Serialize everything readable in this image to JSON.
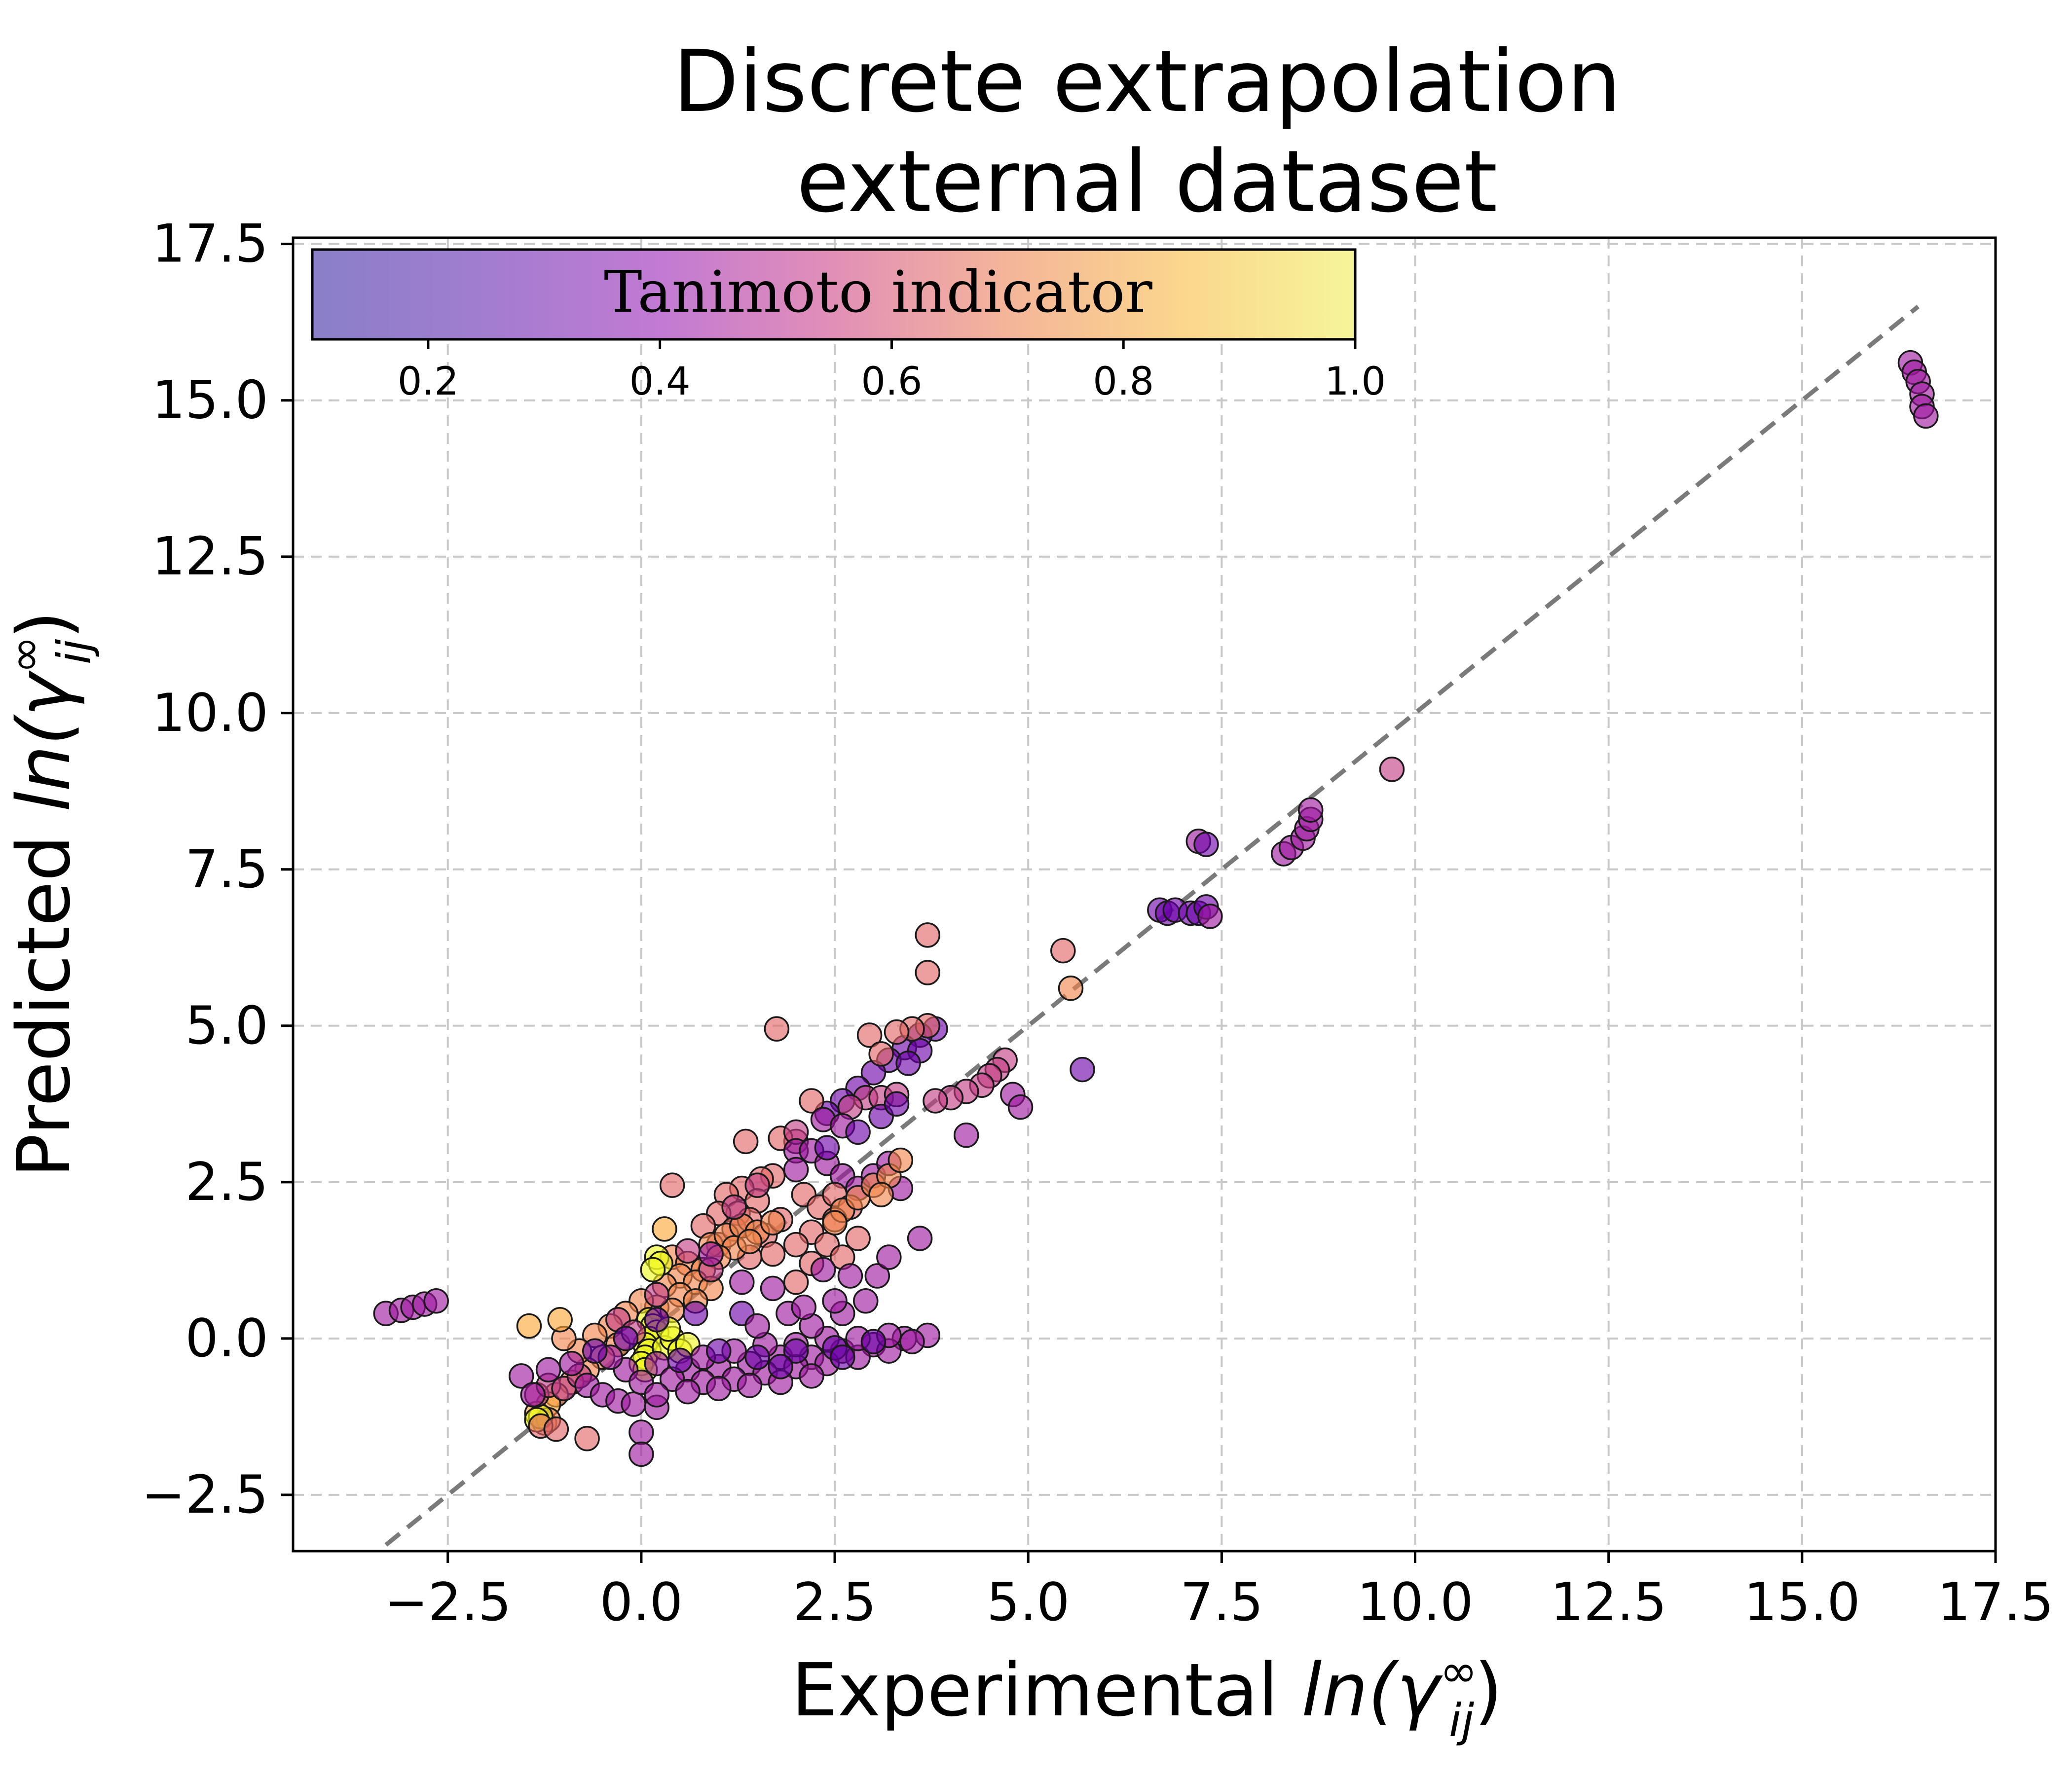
{
  "chart_data": {
    "type": "scatter",
    "title": [
      "Discrete extrapolation",
      "external dataset"
    ],
    "xlabel": {
      "text": "Experimental ",
      "math": "ln(γ",
      "sup": "∞",
      "sub": "ij",
      "close": ")"
    },
    "ylabel": {
      "text": "Predicted ",
      "math": "ln(γ",
      "sup": "∞",
      "sub": "ij",
      "close": ")"
    },
    "xlim": [
      -4.5,
      17.5
    ],
    "ylim": [
      -3.4,
      17.6
    ],
    "x_ticks": [
      -2.5,
      0.0,
      2.5,
      5.0,
      7.5,
      10.0,
      12.5,
      15.0,
      17.5
    ],
    "x_tick_labels": [
      "−2.5",
      "0.0",
      "2.5",
      "5.0",
      "7.5",
      "10.0",
      "12.5",
      "15.0",
      "17.5"
    ],
    "y_ticks": [
      -2.5,
      0.0,
      2.5,
      5.0,
      7.5,
      10.0,
      12.5,
      15.0,
      17.5
    ],
    "y_tick_labels": [
      "−2.5",
      "0.0",
      "2.5",
      "5.0",
      "7.5",
      "10.0",
      "12.5",
      "15.0",
      "17.5"
    ],
    "grid": true,
    "reference_line": {
      "style": "dashed",
      "color": "#7a7a7a",
      "from": [
        -3.3,
        -3.3
      ],
      "to": [
        16.5,
        16.5
      ]
    },
    "colorbar": {
      "label": "Tanimoto indicator",
      "placement": "inset top-left",
      "range": [
        0.1,
        1.0
      ],
      "ticks": [
        0.2,
        0.4,
        0.6,
        0.8,
        1.0
      ],
      "tick_labels": [
        "0.2",
        "0.4",
        "0.6",
        "0.8",
        "1.0"
      ],
      "colormap": "plasma",
      "stops": [
        "#8a7fc8",
        "#a27dd0",
        "#c27ad3",
        "#e28fb7",
        "#f4b599",
        "#fbd68d",
        "#f6f59a"
      ]
    },
    "point_colors": {
      "0.1": "#3e049c",
      "0.2": "#6a00a8",
      "0.3": "#9c179e",
      "0.4": "#c13b82",
      "0.5": "#e16462",
      "0.6": "#f2844b",
      "0.7": "#fca636",
      "0.9": "#f0f921"
    },
    "points": [
      [
        -3.3,
        0.4,
        0.3
      ],
      [
        -3.1,
        0.45,
        0.3
      ],
      [
        -2.95,
        0.5,
        0.3
      ],
      [
        -2.8,
        0.55,
        0.3
      ],
      [
        -2.65,
        0.6,
        0.3
      ],
      [
        16.4,
        15.6,
        0.3
      ],
      [
        16.45,
        15.45,
        0.3
      ],
      [
        16.5,
        15.3,
        0.3
      ],
      [
        16.55,
        15.1,
        0.3
      ],
      [
        16.55,
        14.9,
        0.3
      ],
      [
        16.6,
        14.75,
        0.3
      ],
      [
        9.7,
        9.1,
        0.4
      ],
      [
        7.2,
        7.95,
        0.3
      ],
      [
        7.3,
        7.9,
        0.2
      ],
      [
        8.3,
        7.75,
        0.3
      ],
      [
        8.4,
        7.85,
        0.3
      ],
      [
        8.55,
        8.0,
        0.3
      ],
      [
        8.6,
        8.15,
        0.3
      ],
      [
        8.65,
        8.3,
        0.3
      ],
      [
        8.65,
        8.45,
        0.3
      ],
      [
        6.7,
        6.85,
        0.2
      ],
      [
        6.8,
        6.8,
        0.2
      ],
      [
        6.9,
        6.85,
        0.2
      ],
      [
        7.1,
        6.8,
        0.2
      ],
      [
        7.2,
        6.8,
        0.2
      ],
      [
        7.3,
        6.9,
        0.2
      ],
      [
        7.35,
        6.75,
        0.3
      ],
      [
        5.45,
        6.2,
        0.5
      ],
      [
        5.55,
        5.6,
        0.6
      ],
      [
        5.7,
        4.3,
        0.2
      ],
      [
        3.7,
        6.45,
        0.5
      ],
      [
        3.7,
        5.85,
        0.5
      ],
      [
        1.75,
        4.95,
        0.5
      ],
      [
        3.8,
        4.95,
        0.2
      ],
      [
        3.6,
        4.85,
        0.2
      ],
      [
        3.4,
        4.65,
        0.2
      ],
      [
        3.2,
        4.45,
        0.2
      ],
      [
        3.0,
        4.25,
        0.2
      ],
      [
        2.8,
        4.0,
        0.2
      ],
      [
        2.6,
        3.8,
        0.2
      ],
      [
        3.6,
        4.6,
        0.2
      ],
      [
        3.45,
        4.4,
        0.2
      ],
      [
        2.4,
        3.6,
        0.2
      ],
      [
        3.7,
        5.0,
        0.5
      ],
      [
        3.5,
        4.95,
        0.5
      ],
      [
        3.3,
        4.9,
        0.5
      ],
      [
        2.95,
        4.85,
        0.5
      ],
      [
        3.1,
        4.55,
        0.5
      ],
      [
        4.7,
        4.45,
        0.4
      ],
      [
        4.6,
        4.3,
        0.4
      ],
      [
        4.5,
        4.2,
        0.4
      ],
      [
        4.4,
        4.05,
        0.4
      ],
      [
        4.2,
        3.95,
        0.4
      ],
      [
        4.0,
        3.85,
        0.4
      ],
      [
        3.8,
        3.8,
        0.4
      ],
      [
        4.8,
        3.9,
        0.3
      ],
      [
        4.9,
        3.7,
        0.3
      ],
      [
        4.2,
        3.25,
        0.3
      ],
      [
        2.9,
        3.85,
        0.4
      ],
      [
        3.1,
        3.85,
        0.4
      ],
      [
        2.7,
        3.7,
        0.4
      ],
      [
        3.3,
        3.9,
        0.4
      ],
      [
        2.2,
        3.8,
        0.5
      ],
      [
        2.35,
        3.5,
        0.3
      ],
      [
        2.0,
        3.15,
        0.4
      ],
      [
        1.35,
        3.15,
        0.5
      ],
      [
        1.8,
        3.2,
        0.5
      ],
      [
        2.0,
        3.3,
        0.4
      ],
      [
        2.6,
        3.4,
        0.3
      ],
      [
        2.0,
        3.0,
        0.3
      ],
      [
        2.2,
        3.0,
        0.3
      ],
      [
        2.4,
        2.8,
        0.3
      ],
      [
        2.6,
        2.6,
        0.3
      ],
      [
        2.8,
        2.4,
        0.3
      ],
      [
        3.0,
        2.6,
        0.3
      ],
      [
        3.2,
        2.8,
        0.3
      ],
      [
        3.35,
        2.4,
        0.3
      ],
      [
        0.4,
        2.45,
        0.5
      ],
      [
        1.7,
        2.6,
        0.5
      ],
      [
        1.55,
        2.55,
        0.5
      ],
      [
        1.3,
        2.4,
        0.5
      ],
      [
        1.1,
        2.3,
        0.5
      ],
      [
        1.5,
        2.2,
        0.5
      ],
      [
        1.25,
        2.0,
        0.5
      ],
      [
        2.1,
        2.3,
        0.5
      ],
      [
        2.3,
        2.1,
        0.5
      ],
      [
        2.5,
        2.3,
        0.5
      ],
      [
        2.7,
        2.1,
        0.5
      ],
      [
        2.5,
        1.9,
        0.5
      ],
      [
        2.2,
        1.7,
        0.5
      ],
      [
        2.4,
        1.5,
        0.5
      ],
      [
        2.6,
        1.3,
        0.5
      ],
      [
        2.2,
        1.2,
        0.5
      ],
      [
        2.0,
        1.5,
        0.5
      ],
      [
        2.8,
        1.6,
        0.5
      ],
      [
        2.0,
        0.9,
        0.5
      ],
      [
        1.0,
        2.0,
        0.5
      ],
      [
        0.8,
        1.8,
        0.5
      ],
      [
        1.0,
        1.5,
        0.5
      ],
      [
        1.2,
        1.75,
        0.5
      ],
      [
        1.4,
        1.9,
        0.5
      ],
      [
        1.6,
        1.65,
        0.5
      ],
      [
        1.8,
        1.9,
        0.5
      ],
      [
        1.7,
        1.35,
        0.5
      ],
      [
        1.4,
        1.3,
        0.5
      ],
      [
        2.6,
        2.05,
        0.6
      ],
      [
        2.8,
        2.25,
        0.6
      ],
      [
        3.0,
        2.45,
        0.6
      ],
      [
        3.2,
        2.6,
        0.6
      ],
      [
        3.35,
        2.85,
        0.6
      ],
      [
        2.5,
        1.85,
        0.6
      ],
      [
        3.1,
        2.3,
        0.6
      ],
      [
        0.9,
        1.5,
        0.6
      ],
      [
        1.1,
        1.65,
        0.6
      ],
      [
        1.3,
        1.8,
        0.6
      ],
      [
        1.5,
        1.7,
        0.6
      ],
      [
        1.7,
        1.85,
        0.6
      ],
      [
        1.2,
        1.45,
        0.6
      ],
      [
        1.4,
        1.55,
        0.6
      ],
      [
        1.0,
        1.3,
        0.6
      ],
      [
        0.4,
        1.3,
        0.6
      ],
      [
        0.6,
        1.2,
        0.6
      ],
      [
        0.8,
        1.1,
        0.6
      ],
      [
        0.5,
        1.0,
        0.6
      ],
      [
        0.7,
        0.9,
        0.6
      ],
      [
        0.9,
        0.8,
        0.6
      ],
      [
        0.3,
        0.85,
        0.6
      ],
      [
        0.5,
        0.7,
        0.6
      ],
      [
        0.7,
        0.6,
        0.6
      ],
      [
        0.2,
        0.5,
        0.6
      ],
      [
        0.4,
        0.45,
        0.6
      ],
      [
        0.0,
        0.6,
        0.6
      ],
      [
        -0.2,
        0.4,
        0.6
      ],
      [
        -0.4,
        0.2,
        0.6
      ],
      [
        -0.6,
        0.05,
        0.6
      ],
      [
        -0.3,
        -0.1,
        0.6
      ],
      [
        -0.5,
        -0.3,
        0.6
      ],
      [
        -0.7,
        -0.5,
        0.6
      ],
      [
        -0.9,
        -0.7,
        0.6
      ],
      [
        -1.1,
        -0.9,
        0.6
      ],
      [
        -0.8,
        -0.2,
        0.6
      ],
      [
        -1.0,
        0.0,
        0.6
      ],
      [
        0.3,
        1.75,
        0.7
      ],
      [
        -1.45,
        0.2,
        0.7
      ],
      [
        -1.05,
        0.3,
        0.7
      ],
      [
        -1.2,
        -1.05,
        0.7
      ],
      [
        -1.35,
        -1.2,
        0.7
      ],
      [
        -1.25,
        -1.35,
        0.6
      ],
      [
        -1.2,
        -1.3,
        0.6
      ],
      [
        -1.3,
        -1.25,
        0.9
      ],
      [
        -1.35,
        -1.3,
        0.9
      ],
      [
        0.2,
        1.3,
        0.9
      ],
      [
        0.25,
        1.2,
        0.9
      ],
      [
        0.15,
        1.1,
        0.9
      ],
      [
        0.1,
        0.3,
        0.9
      ],
      [
        0.15,
        0.2,
        0.9
      ],
      [
        0.2,
        0.1,
        0.9
      ],
      [
        0.1,
        0.0,
        0.9
      ],
      [
        0.05,
        -0.1,
        0.9
      ],
      [
        0.1,
        -0.2,
        0.9
      ],
      [
        0.05,
        -0.3,
        0.9
      ],
      [
        0.0,
        -0.4,
        0.9
      ],
      [
        0.05,
        -0.5,
        0.9
      ],
      [
        0.3,
        -0.15,
        0.9
      ],
      [
        0.4,
        0.0,
        0.9
      ],
      [
        0.5,
        -0.2,
        0.9
      ],
      [
        0.6,
        -0.1,
        0.9
      ],
      [
        0.35,
        0.15,
        0.9
      ],
      [
        -1.35,
        -0.9,
        0.4
      ],
      [
        -1.2,
        -0.75,
        0.4
      ],
      [
        -1.0,
        -0.8,
        0.4
      ],
      [
        -0.8,
        -0.6,
        0.4
      ],
      [
        -1.3,
        -1.4,
        0.5
      ],
      [
        -0.7,
        -1.6,
        0.5
      ],
      [
        -1.1,
        -1.45,
        0.5
      ],
      [
        -0.3,
        0.3,
        0.4
      ],
      [
        -0.1,
        0.1,
        0.4
      ],
      [
        0.2,
        0.7,
        0.4
      ],
      [
        0.6,
        1.4,
        0.4
      ],
      [
        0.9,
        1.1,
        0.4
      ],
      [
        1.2,
        2.1,
        0.4
      ],
      [
        1.5,
        2.45,
        0.4
      ],
      [
        -1.55,
        -0.6,
        0.3
      ],
      [
        -1.4,
        -0.9,
        0.3
      ],
      [
        -1.2,
        -0.5,
        0.3
      ],
      [
        -0.9,
        -0.4,
        0.3
      ],
      [
        -0.7,
        -0.75,
        0.3
      ],
      [
        -0.5,
        -0.9,
        0.3
      ],
      [
        -0.3,
        -1.0,
        0.3
      ],
      [
        -0.1,
        -1.05,
        0.3
      ],
      [
        0.2,
        -1.1,
        0.3
      ],
      [
        0.0,
        -1.5,
        0.3
      ],
      [
        0.0,
        -1.85,
        0.3
      ],
      [
        -0.2,
        -0.5,
        0.3
      ],
      [
        0.2,
        -0.4,
        0.3
      ],
      [
        0.6,
        -0.5,
        0.3
      ],
      [
        1.0,
        -0.45,
        0.3
      ],
      [
        1.4,
        -0.4,
        0.3
      ],
      [
        1.8,
        -0.3,
        0.3
      ],
      [
        2.2,
        -0.3,
        0.3
      ],
      [
        2.6,
        -0.2,
        0.3
      ],
      [
        3.0,
        -0.1,
        0.3
      ],
      [
        3.4,
        0.0,
        0.3
      ],
      [
        3.7,
        0.05,
        0.3
      ],
      [
        0.0,
        -0.7,
        0.3
      ],
      [
        0.4,
        -0.65,
        0.3
      ],
      [
        0.8,
        -0.7,
        0.3
      ],
      [
        1.2,
        -0.65,
        0.3
      ],
      [
        1.6,
        -0.55,
        0.3
      ],
      [
        2.0,
        -0.45,
        0.3
      ],
      [
        2.4,
        -0.4,
        0.3
      ],
      [
        2.8,
        -0.3,
        0.3
      ],
      [
        3.2,
        -0.2,
        0.3
      ],
      [
        3.5,
        -0.05,
        0.3
      ],
      [
        0.2,
        -0.9,
        0.3
      ],
      [
        0.6,
        -0.85,
        0.3
      ],
      [
        1.0,
        -0.8,
        0.3
      ],
      [
        1.4,
        -0.75,
        0.3
      ],
      [
        1.8,
        -0.7,
        0.3
      ],
      [
        2.2,
        -0.6,
        0.3
      ],
      [
        -0.4,
        -0.3,
        0.3
      ],
      [
        0.8,
        -0.3,
        0.3
      ],
      [
        1.2,
        -0.2,
        0.3
      ],
      [
        1.6,
        -0.1,
        0.3
      ],
      [
        2.0,
        -0.1,
        0.3
      ],
      [
        2.4,
        0.0,
        0.3
      ],
      [
        2.8,
        0.0,
        0.3
      ],
      [
        3.2,
        0.05,
        0.3
      ],
      [
        0.5,
        -0.35,
        0.2
      ],
      [
        1.0,
        -0.2,
        0.2
      ],
      [
        1.5,
        -0.3,
        0.2
      ],
      [
        2.0,
        -0.2,
        0.2
      ],
      [
        2.5,
        -0.15,
        0.2
      ],
      [
        3.0,
        -0.05,
        0.2
      ],
      [
        1.8,
        -0.45,
        0.2
      ],
      [
        2.6,
        -0.3,
        0.2
      ],
      [
        0.2,
        0.3,
        0.2
      ],
      [
        -0.2,
        0.0,
        0.2
      ],
      [
        0.7,
        0.4,
        0.2
      ],
      [
        1.3,
        0.4,
        0.2
      ],
      [
        -0.6,
        -0.2,
        0.2
      ],
      [
        1.5,
        0.2,
        0.3
      ],
      [
        2.2,
        0.2,
        0.3
      ],
      [
        2.6,
        0.4,
        0.3
      ],
      [
        1.9,
        0.4,
        0.3
      ],
      [
        0.9,
        1.35,
        0.3
      ],
      [
        1.3,
        0.9,
        0.3
      ],
      [
        1.7,
        0.8,
        0.3
      ],
      [
        2.1,
        0.5,
        0.3
      ],
      [
        2.5,
        0.6,
        0.3
      ],
      [
        2.9,
        0.6,
        0.3
      ],
      [
        3.05,
        1.0,
        0.3
      ],
      [
        3.2,
        1.3,
        0.3
      ],
      [
        2.7,
        1.0,
        0.3
      ],
      [
        2.35,
        1.1,
        0.3
      ],
      [
        3.6,
        1.6,
        0.3
      ],
      [
        2.0,
        2.7,
        0.3
      ],
      [
        2.4,
        3.05,
        0.2
      ],
      [
        2.8,
        3.3,
        0.2
      ],
      [
        3.1,
        3.55,
        0.2
      ],
      [
        3.3,
        3.75,
        0.2
      ]
    ]
  }
}
